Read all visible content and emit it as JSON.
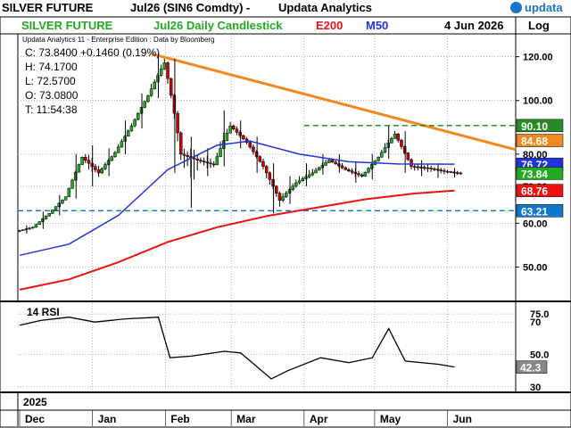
{
  "header": {
    "instrument": "SILVER FUTURE",
    "contract": "Jul26 (SIN6 Comdty) -",
    "provider": "Updata Analytics",
    "brand": "updata"
  },
  "subheader": {
    "name": "SILVER FUTURE",
    "chart_desc": "Jul26 Daily Candlestick",
    "ma200_label": "E200",
    "ma50_label": "M50",
    "date": "4 Jun 2026",
    "scale": "Log"
  },
  "info": {
    "line1": "Updata Analytics 11 - Enterprise Edition : Data by Bloomberg",
    "close": "C: 73.8400  +0.1460 (0.19%)",
    "high": "H: 74.1700",
    "low": "L: 72.5700",
    "open": "O: 73.0800",
    "time": "T: 11:54:38"
  },
  "rsi_panel": {
    "label": "14 RSI"
  },
  "colors": {
    "up": "#22aa22",
    "down": "#cc0000",
    "ma50": "#2233dd",
    "ema200": "#ee1111",
    "trendline": "#f08a20",
    "resistance": "#118811",
    "support": "#1177cc",
    "rsi": "#000000"
  },
  "chart_data": [
    {
      "type": "candlestick",
      "title": "SILVER FUTURE Jul26 Daily Candlestick",
      "y_scale": "log",
      "ylim": [
        43.5,
        131
      ],
      "y_ticks": [
        50.0,
        60.0,
        70.0,
        80.0,
        100.0,
        120.0
      ],
      "y_tick_labels": [
        "50.00",
        "60.00",
        "70.00",
        "80.00",
        "100.00",
        "120.00"
      ],
      "x_year_label": "2025",
      "x_month_labels": [
        "Dec",
        "Jan",
        "Feb",
        "Mar",
        "Apr",
        "May",
        "Jun"
      ],
      "x_range": [
        "2025-12-01",
        "2026-06-30"
      ],
      "grid": true,
      "last_ohlc": {
        "open": 73.08,
        "high": 74.17,
        "low": 72.57,
        "close": 73.84,
        "change": 0.146,
        "change_pct": 0.19
      },
      "price_tags": [
        {
          "label": "90.10",
          "value": 90.1,
          "color": "#2a8a2a"
        },
        {
          "label": "84.68",
          "value": 84.68,
          "color": "#f08a20"
        },
        {
          "label": "76.72",
          "value": 76.72,
          "color": "#2233dd"
        },
        {
          "label": "73.84",
          "value": 73.84,
          "color": "#22aa22"
        },
        {
          "label": "68.76",
          "value": 68.76,
          "color": "#ee1111"
        },
        {
          "label": "63.21",
          "value": 63.21,
          "color": "#1177cc"
        }
      ],
      "candles_weekly_approx": [
        {
          "date": "2025-12-01",
          "o": 58.0,
          "h": 59.5,
          "l": 57.5,
          "c": 59.0
        },
        {
          "date": "2025-12-08",
          "o": 59.0,
          "h": 63.0,
          "l": 58.6,
          "c": 62.5
        },
        {
          "date": "2025-12-15",
          "o": 62.5,
          "h": 67.5,
          "l": 62.0,
          "c": 67.0
        },
        {
          "date": "2025-12-22",
          "o": 67.0,
          "h": 80.0,
          "l": 66.5,
          "c": 79.0
        },
        {
          "date": "2025-12-29",
          "o": 79.0,
          "h": 83.0,
          "l": 70.0,
          "c": 74.0
        },
        {
          "date": "2026-01-05",
          "o": 74.0,
          "h": 82.0,
          "l": 73.0,
          "c": 80.5
        },
        {
          "date": "2026-01-12",
          "o": 80.5,
          "h": 92.0,
          "l": 80.0,
          "c": 90.0
        },
        {
          "date": "2026-01-19",
          "o": 90.0,
          "h": 103.0,
          "l": 89.0,
          "c": 102.0
        },
        {
          "date": "2026-01-26",
          "o": 102.0,
          "h": 121.5,
          "l": 101.0,
          "c": 117.0
        },
        {
          "date": "2026-02-02",
          "o": 117.0,
          "h": 119.0,
          "l": 74.0,
          "c": 80.0
        },
        {
          "date": "2026-02-09",
          "o": 80.0,
          "h": 86.0,
          "l": 64.0,
          "c": 78.0
        },
        {
          "date": "2026-02-16",
          "o": 78.0,
          "h": 82.0,
          "l": 73.0,
          "c": 76.5
        },
        {
          "date": "2026-02-23",
          "o": 76.5,
          "h": 96.0,
          "l": 76.0,
          "c": 90.0
        },
        {
          "date": "2026-03-02",
          "o": 90.0,
          "h": 92.0,
          "l": 82.0,
          "c": 84.0
        },
        {
          "date": "2026-03-09",
          "o": 84.0,
          "h": 86.0,
          "l": 74.0,
          "c": 76.0
        },
        {
          "date": "2026-03-16",
          "o": 76.0,
          "h": 77.0,
          "l": 62.5,
          "c": 66.0
        },
        {
          "date": "2026-03-23",
          "o": 66.0,
          "h": 73.0,
          "l": 65.0,
          "c": 71.0
        },
        {
          "date": "2026-03-30",
          "o": 71.0,
          "h": 77.0,
          "l": 70.0,
          "c": 74.0
        },
        {
          "date": "2026-04-06",
          "o": 74.0,
          "h": 80.0,
          "l": 73.5,
          "c": 78.0
        },
        {
          "date": "2026-04-13",
          "o": 78.0,
          "h": 80.0,
          "l": 74.0,
          "c": 75.0
        },
        {
          "date": "2026-04-20",
          "o": 75.0,
          "h": 77.5,
          "l": 71.0,
          "c": 73.0
        },
        {
          "date": "2026-04-27",
          "o": 73.0,
          "h": 80.0,
          "l": 72.0,
          "c": 79.0
        },
        {
          "date": "2026-05-04",
          "o": 79.0,
          "h": 90.1,
          "l": 78.5,
          "c": 87.0
        },
        {
          "date": "2026-05-11",
          "o": 87.0,
          "h": 88.0,
          "l": 74.0,
          "c": 76.0
        },
        {
          "date": "2026-05-18",
          "o": 76.0,
          "h": 78.0,
          "l": 73.0,
          "c": 75.5
        },
        {
          "date": "2026-05-25",
          "o": 75.5,
          "h": 77.0,
          "l": 72.5,
          "c": 74.5
        },
        {
          "date": "2026-06-01",
          "o": 74.5,
          "h": 75.5,
          "l": 72.6,
          "c": 73.84
        }
      ],
      "series": [
        {
          "name": "M50",
          "x": [
            "2025-12-01",
            "2025-12-22",
            "2026-01-12",
            "2026-02-02",
            "2026-02-23",
            "2026-03-09",
            "2026-03-30",
            "2026-04-20",
            "2026-05-11",
            "2026-06-04"
          ],
          "values": [
            52.5,
            55.0,
            62.0,
            75.0,
            83.0,
            84.5,
            80.0,
            77.5,
            76.8,
            76.72
          ]
        },
        {
          "name": "E200",
          "x": [
            "2025-12-01",
            "2025-12-22",
            "2026-01-12",
            "2026-02-02",
            "2026-02-23",
            "2026-03-16",
            "2026-04-06",
            "2026-04-27",
            "2026-05-18",
            "2026-06-04"
          ],
          "values": [
            45.5,
            47.5,
            51.0,
            55.5,
            59.0,
            61.8,
            64.0,
            66.3,
            67.9,
            68.76
          ]
        }
      ],
      "annotations": [
        {
          "kind": "trendline",
          "from": {
            "date": "2026-01-26",
            "value": 121.5
          },
          "to": {
            "date": "2026-06-30",
            "value": 81.5
          }
        },
        {
          "kind": "horizontal",
          "value": 90.1,
          "from": "2026-04-01",
          "style": "dashed"
        },
        {
          "kind": "horizontal",
          "value": 63.21,
          "style": "dashed"
        }
      ]
    },
    {
      "type": "line",
      "title": "14 RSI",
      "ylim": [
        30,
        80
      ],
      "y_tick_labels": [
        "30",
        "50.0",
        "70",
        "75.0"
      ],
      "y_ticks": [
        30,
        50,
        70,
        75
      ],
      "last_value": 42.3,
      "series": [
        {
          "name": "14 RSI",
          "x": [
            "2025-12-01",
            "2025-12-10",
            "2025-12-22",
            "2026-01-02",
            "2026-01-15",
            "2026-01-29",
            "2026-02-03",
            "2026-02-12",
            "2026-02-26",
            "2026-03-05",
            "2026-03-18",
            "2026-03-25",
            "2026-04-08",
            "2026-04-20",
            "2026-04-30",
            "2026-05-07",
            "2026-05-14",
            "2026-05-28",
            "2026-06-04"
          ],
          "values": [
            68,
            71,
            73,
            70,
            72,
            73,
            48,
            49,
            52,
            51,
            35,
            40,
            48,
            45,
            48,
            66,
            46,
            44,
            42.3
          ]
        }
      ]
    }
  ]
}
